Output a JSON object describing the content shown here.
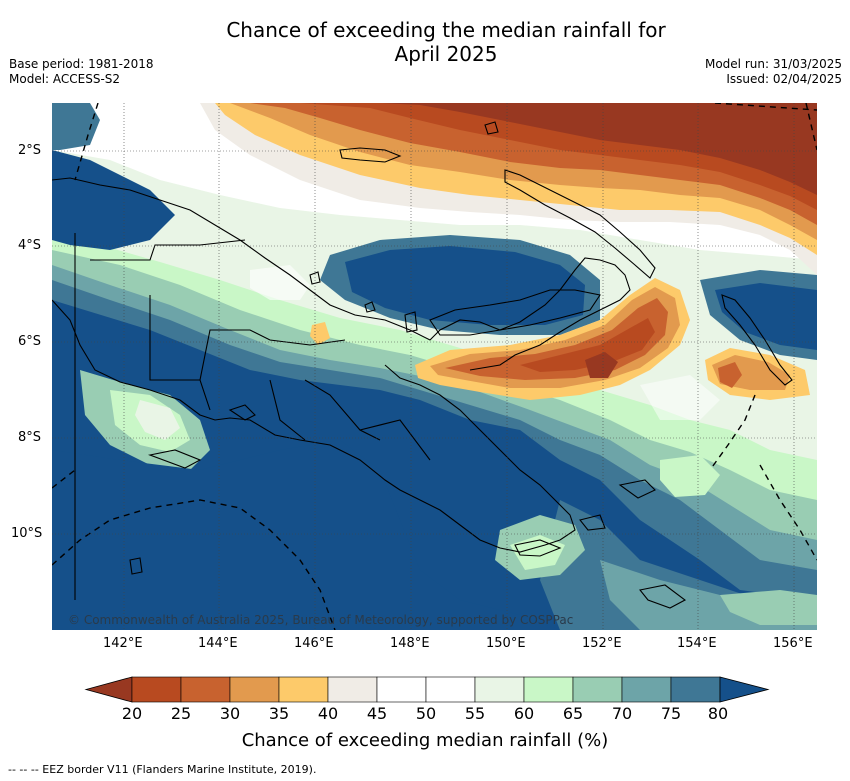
{
  "title": "Chance of exceeding the median rainfall for\nApril 2025",
  "title_line1": "Chance of exceeding the median rainfall for",
  "title_line2": "April 2025",
  "base_period": "Base period: 1981-2018",
  "model": "Model: ACCESS-S2",
  "model_run": "Model run: 31/03/2025",
  "issued": "Issued: 02/04/2025",
  "copyright": "© Commonwealth of Australia 2025, Bureau of Meteorology, supported by COSPPac",
  "footer": "-- -- -- EEZ border V11 (Flanders Marine Institute, 2019).",
  "lat_labels": [
    "2°S",
    "4°S",
    "6°S",
    "8°S",
    "10°S"
  ],
  "lon_labels": [
    "142°E",
    "144°E",
    "146°E",
    "148°E",
    "150°E",
    "152°E",
    "154°E",
    "156°E"
  ],
  "colorbar": {
    "title": "Chance of exceeding median rainfall (%)",
    "ticks": [
      "20",
      "25",
      "30",
      "35",
      "40",
      "45",
      "50",
      "55",
      "60",
      "65",
      "70",
      "75",
      "80"
    ],
    "colors": [
      "#b84a20",
      "#c8622f",
      "#e29a4e",
      "#fdca6a",
      "#f0ece6",
      "#ffffff",
      "#ffffff",
      "#e9f5e6",
      "#c9f7c7",
      "#99cdb3",
      "#6da4a8",
      "#3f7795"
    ],
    "under_color": "#983821",
    "over_color": "#15508a"
  },
  "colors": {
    "land_outline": "#000000",
    "gridline": "#444444"
  }
}
